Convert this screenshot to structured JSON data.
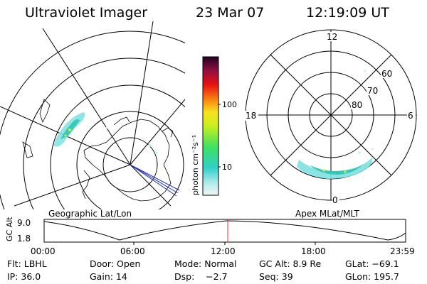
{
  "header": {
    "instrument": "Ultraviolet Imager",
    "date": "23 Mar 07",
    "time": "12:19:09 UT"
  },
  "left_panel": {
    "caption": "Geographic Lat/Lon"
  },
  "right_panel": {
    "caption": "Apex MLat/MLT",
    "mlt_labels": [
      "12",
      "18",
      "6",
      "0"
    ],
    "mlat_labels": [
      "60",
      "70",
      "80"
    ]
  },
  "colorbar": {
    "label": "photon cm⁻²s⁻¹",
    "ticks": [
      "100",
      "10"
    ]
  },
  "orbit_plot": {
    "ylabel": "GC Alt",
    "yticks": [
      "9.0",
      "1.8"
    ],
    "xticks": [
      "00:00",
      "06:00",
      "12:00",
      "18:00",
      "23:59"
    ],
    "current_marker_time": "12:19"
  },
  "info": {
    "filter": "Flt: LBHL",
    "door": "Door: Open",
    "mode": "Mode: Normal",
    "gc_alt": "GC Alt: 8.9 Re",
    "glat": "GLat: −69.1",
    "ip": "IP: 36.0",
    "gain": "Gain: 14",
    "dsp": "Dsp:    −2.7",
    "seq": "Seq: 39",
    "glon": "GLon: 195.7"
  },
  "colors": {
    "aurora_low": "#7fe0e0",
    "aurora_mid": "#3cc8b8",
    "aurora_high": "#c8f03c",
    "marker": "#ff3030"
  }
}
